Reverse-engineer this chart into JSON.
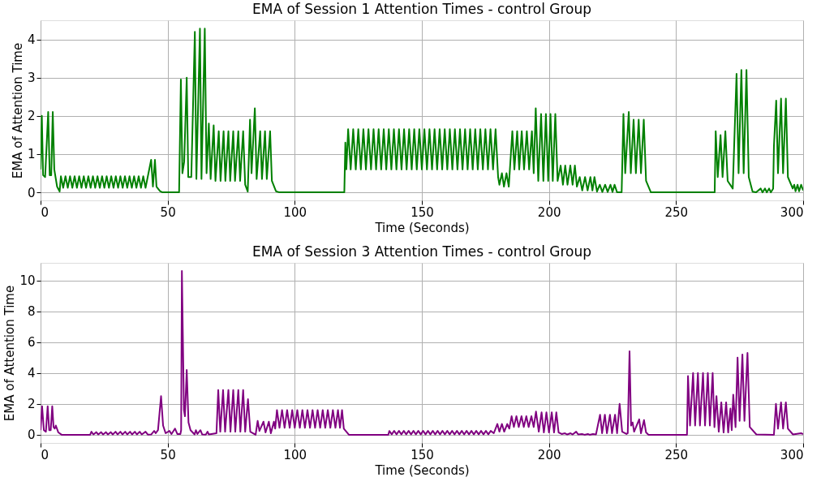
{
  "chart_data": [
    {
      "type": "line",
      "title": "EMA of Session 1 Attention Times - control Group",
      "xlabel": "Time (Seconds)",
      "ylabel": "EMA of Attention Time",
      "xlim": [
        0,
        300
      ],
      "xticks": [
        0,
        50,
        100,
        150,
        200,
        250,
        300
      ],
      "ylim": [
        -0.21,
        4.5
      ],
      "yticks": [
        0,
        1,
        2,
        3,
        4
      ],
      "grid": true,
      "legend": false,
      "marker": "none",
      "line_style": "solid",
      "series": [
        {
          "color": "#008000",
          "x": [
            0,
            0.5,
            1.0,
            1.8,
            3.0,
            3.6,
            4.2,
            4.8,
            5.4,
            6.5,
            7.5,
            8.0,
            8.9,
            9.8,
            10.7,
            11.6,
            12.5,
            13.4,
            14.3,
            15.2,
            16.1,
            17.0,
            17.9,
            18.8,
            19.7,
            20.6,
            21.5,
            22.4,
            23.3,
            24.2,
            25.1,
            26.0,
            26.9,
            27.8,
            28.7,
            29.6,
            30.5,
            31.4,
            32.3,
            33.2,
            34.1,
            35.0,
            35.9,
            36.8,
            37.7,
            38.6,
            39.5,
            40.4,
            41.3,
            43.5,
            44.2,
            45.0,
            45.6,
            47,
            48,
            54.5,
            55.2,
            55.8,
            56.5,
            57.5,
            58.1,
            59.3,
            60.7,
            61.3,
            62.7,
            63.3,
            64.6,
            65.3,
            66.2,
            66.9,
            68.1,
            68.8,
            70.1,
            70.8,
            72.0,
            72.7,
            73.9,
            74.6,
            75.8,
            76.5,
            77.8,
            78.5,
            79.7,
            80.5,
            81.5,
            82.4,
            83.0,
            84.3,
            85.0,
            86.4,
            87.1,
            88.3,
            89.0,
            90.3,
            91.0,
            92.6,
            94,
            119.5,
            119.9,
            120.3,
            121,
            122,
            123,
            124,
            125,
            126,
            127,
            128,
            129,
            130,
            131,
            132,
            133,
            134,
            135,
            136,
            137,
            138,
            139,
            140,
            141,
            142,
            143,
            144,
            145,
            146,
            147,
            148,
            149,
            150,
            151,
            152,
            153,
            154,
            155,
            156,
            157,
            158,
            159,
            160,
            161,
            162,
            163,
            164,
            165,
            166,
            167,
            168,
            169,
            170,
            171,
            172,
            173,
            174,
            175,
            176,
            177,
            178,
            179,
            180,
            180.5,
            181.5,
            182.3,
            183.3,
            184.2,
            185.6,
            186.4,
            187.5,
            188.3,
            189.3,
            190.2,
            191.3,
            192.2,
            193.3,
            194.0,
            194.8,
            195.8,
            196.9,
            197.8,
            198.8,
            199.7,
            200.6,
            201.5,
            202.5,
            203.4,
            204.6,
            205.5,
            206.4,
            207.3,
            208.4,
            209.3,
            210.2,
            211.0,
            212.1,
            213.1,
            214.2,
            215.2,
            216.3,
            217.1,
            217.9,
            218.9,
            220,
            221,
            222.1,
            223.1,
            224.2,
            225,
            225.8,
            226.8,
            228.6,
            229.3,
            230.0,
            231.4,
            232.2,
            233.3,
            234.2,
            235.3,
            236.2,
            237.3,
            238.2,
            240.1,
            265.2,
            265.6,
            266.4,
            267.5,
            268.3,
            269.4,
            270.3,
            272.3,
            273.8,
            274.6,
            275.7,
            276.6,
            277.7,
            278.6,
            280.1,
            281.5,
            283.3,
            284,
            285,
            285.7,
            286.6,
            287.3,
            288.2,
            288.5,
            289.4,
            290.1,
            291.3,
            292.1,
            293.2,
            294,
            295.9,
            296.5,
            297,
            297.8,
            298.4,
            299.2,
            300
          ],
          "values": [
            0.6,
            2.0,
            0.45,
            0.4,
            2.1,
            0.45,
            0.45,
            2.1,
            0.6,
            0.15,
            0.02,
            0.42,
            0.12,
            0.42,
            0.12,
            0.42,
            0.12,
            0.42,
            0.12,
            0.42,
            0.12,
            0.42,
            0.12,
            0.42,
            0.12,
            0.42,
            0.12,
            0.42,
            0.12,
            0.42,
            0.12,
            0.42,
            0.12,
            0.42,
            0.12,
            0.42,
            0.12,
            0.42,
            0.12,
            0.42,
            0.12,
            0.42,
            0.12,
            0.42,
            0.12,
            0.42,
            0.12,
            0.42,
            0.12,
            0.85,
            0.15,
            0.85,
            0.15,
            0.03,
            0,
            0,
            2.95,
            0.5,
            0.8,
            3.0,
            0.4,
            0.4,
            4.2,
            0.35,
            4.28,
            0.35,
            4.28,
            0.5,
            1.8,
            0.35,
            1.75,
            0.3,
            1.6,
            0.3,
            1.6,
            0.3,
            1.6,
            0.3,
            1.6,
            0.3,
            1.6,
            0.3,
            1.6,
            0.2,
            0.02,
            1.9,
            0.5,
            2.2,
            0.35,
            1.6,
            0.35,
            1.6,
            0.35,
            1.6,
            0.3,
            0.03,
            0,
            0,
            1.3,
            0.6,
            1.65,
            0.6,
            1.65,
            0.6,
            1.65,
            0.6,
            1.65,
            0.6,
            1.65,
            0.6,
            1.65,
            0.6,
            1.65,
            0.6,
            1.65,
            0.6,
            1.65,
            0.6,
            1.65,
            0.6,
            1.65,
            0.6,
            1.65,
            0.6,
            1.65,
            0.6,
            1.65,
            0.6,
            1.65,
            0.6,
            1.65,
            0.6,
            1.65,
            0.6,
            1.65,
            0.6,
            1.65,
            0.6,
            1.65,
            0.6,
            1.65,
            0.6,
            1.65,
            0.6,
            1.65,
            0.6,
            1.65,
            0.6,
            1.65,
            0.6,
            1.65,
            0.6,
            1.65,
            0.6,
            1.65,
            0.6,
            1.65,
            0.6,
            1.65,
            0.4,
            0.2,
            0.5,
            0.15,
            0.5,
            0.15,
            1.6,
            0.6,
            1.6,
            0.6,
            1.6,
            0.6,
            1.6,
            0.6,
            1.6,
            0.5,
            2.2,
            0.3,
            2.05,
            0.3,
            2.05,
            0.3,
            2.05,
            0.3,
            2.05,
            0.3,
            0.7,
            0.2,
            0.7,
            0.2,
            0.7,
            0.2,
            0.7,
            0.15,
            0.4,
            0.05,
            0.4,
            0.05,
            0.4,
            0.05,
            0.4,
            0.02,
            0.2,
            0.01,
            0.2,
            0.01,
            0.2,
            0.01,
            0.2,
            0,
            0,
            2.05,
            0.5,
            2.1,
            0.5,
            1.9,
            0.5,
            1.9,
            0.5,
            1.9,
            0.3,
            0,
            0,
            1.6,
            0.4,
            1.5,
            0.4,
            1.6,
            0.3,
            0.1,
            3.1,
            0.5,
            3.2,
            0.5,
            3.2,
            0.4,
            0.02,
            0,
            0.1,
            0,
            0.1,
            0,
            0.1,
            0,
            0.1,
            1.2,
            2.4,
            0.5,
            2.45,
            0.5,
            2.45,
            0.4,
            0.1,
            0.2,
            0.03,
            0.2,
            0.03,
            0.2,
            0.05
          ]
        }
      ]
    },
    {
      "type": "line",
      "title": "EMA of Session 3 Attention Times - control Group",
      "xlabel": "Time (Seconds)",
      "ylabel": "EMA of Attention Time",
      "xlim": [
        0,
        300
      ],
      "xticks": [
        0,
        50,
        100,
        150,
        200,
        250,
        300
      ],
      "ylim": [
        -0.53,
        11.13
      ],
      "yticks": [
        0,
        2,
        4,
        6,
        8,
        10
      ],
      "grid": true,
      "legend": false,
      "marker": "none",
      "line_style": "solid",
      "series": [
        {
          "color": "#800080",
          "x": [
            0,
            0.6,
            1.3,
            2.1,
            2.8,
            3.4,
            4.0,
            4.6,
            5.1,
            5.6,
            6.0,
            7.0,
            8.3,
            19.5,
            20.0,
            20.8,
            21.9,
            22.7,
            23.8,
            24.6,
            25.7,
            26.5,
            27.6,
            28.4,
            29.5,
            30.3,
            31.4,
            32.2,
            33.3,
            34.1,
            35.2,
            36.0,
            37.1,
            37.9,
            39.0,
            39.8,
            41.3,
            42.2,
            43.5,
            44.7,
            45.3,
            46.2,
            47.4,
            48.2,
            49.2,
            50.7,
            51.5,
            52.9,
            53.8,
            55.0,
            55.3,
            55.6,
            56.4,
            56.8,
            57.5,
            58.2,
            59.0,
            60.6,
            61.1,
            61.7,
            62.9,
            63.6,
            65.0,
            65.7,
            66.2,
            69.2,
            69.9,
            70.7,
            71.8,
            72.6,
            73.9,
            74.7,
            75.8,
            76.6,
            77.8,
            78.6,
            79.7,
            80.5,
            81.6,
            82.5,
            84.6,
            85.4,
            86.1,
            87.7,
            88.5,
            89.8,
            90.6,
            91.8,
            92.3,
            93.0,
            94.0,
            95.0,
            96.0,
            97.0,
            98.0,
            99.0,
            100.0,
            101.0,
            102.0,
            103.0,
            104.0,
            105.0,
            106.0,
            107.0,
            108.0,
            109.0,
            110.0,
            111.0,
            112.0,
            113.0,
            114.0,
            115.0,
            116.0,
            117.0,
            117.8,
            118.6,
            119.3,
            121.3,
            136.8,
            137.2,
            138.15,
            139.1,
            140.05,
            141.0,
            141.95,
            142.9,
            143.85,
            144.8,
            145.75,
            146.7,
            147.65,
            148.6,
            149.55,
            150.5,
            151.45,
            152.4,
            153.35,
            154.3,
            155.25,
            156.2,
            157.15,
            158.1,
            159.05,
            160.0,
            160.95,
            161.9,
            162.85,
            163.8,
            164.75,
            165.7,
            166.65,
            167.6,
            168.55,
            169.5,
            170.45,
            171.4,
            172.35,
            173.3,
            174.25,
            175.2,
            176.15,
            177.1,
            178.3,
            179.7,
            180.5,
            181.5,
            182.4,
            183.6,
            184.4,
            185.3,
            186.2,
            187.2,
            188.1,
            189.2,
            190.1,
            191.1,
            192.0,
            193.1,
            194.0,
            194.9,
            196.0,
            197.1,
            198.0,
            199.0,
            200.0,
            201.1,
            202.0,
            202.9,
            203.8,
            205.0,
            206.3,
            207.2,
            208.5,
            209.3,
            210.7,
            211.5,
            213,
            214,
            215.3,
            216,
            217.3,
            218.5,
            220.1,
            220.9,
            222.0,
            222.8,
            224.0,
            224.8,
            226.0,
            226.8,
            227.8,
            228.8,
            230.5,
            231.0,
            231.7,
            232.3,
            232.9,
            233.5,
            235.5,
            236.2,
            237.4,
            238.2,
            239.2,
            254.3,
            254.7,
            255.5,
            256.7,
            257.5,
            258.6,
            259.4,
            260.6,
            261.4,
            262.5,
            263.3,
            264.4,
            265.1,
            265.9,
            266.8,
            267.8,
            268.7,
            269.7,
            270.5,
            271.4,
            271.9,
            272.5,
            273.4,
            274.2,
            275.0,
            276.1,
            276.9,
            278.1,
            279.0,
            281.6,
            288.5,
            289.3,
            290.1,
            291.3,
            292.1,
            293.2,
            294.0,
            296.0,
            299.2,
            300
          ],
          "values": [
            0.3,
            1.85,
            0.3,
            0.2,
            1.85,
            0.3,
            0.3,
            1.85,
            0.5,
            0.4,
            0.6,
            0.15,
            0,
            0,
            0.2,
            0.02,
            0.17,
            0.02,
            0.17,
            0.02,
            0.17,
            0.02,
            0.17,
            0.02,
            0.2,
            0.02,
            0.2,
            0.02,
            0.2,
            0.02,
            0.2,
            0.02,
            0.2,
            0.02,
            0.2,
            0.02,
            0.2,
            0.01,
            0.02,
            0.25,
            0.1,
            0.3,
            2.5,
            0.6,
            0.1,
            0.25,
            0.05,
            0.4,
            0.05,
            0.05,
            0.3,
            10.6,
            1.6,
            1.2,
            4.2,
            0.8,
            0.3,
            0.02,
            0.3,
            0.05,
            0.3,
            0.02,
            0.01,
            0.2,
            0.02,
            0.1,
            2.9,
            0.2,
            2.9,
            0.2,
            2.9,
            0.2,
            2.9,
            0.2,
            2.9,
            0.2,
            2.9,
            0.2,
            2.3,
            0.2,
            0,
            0.9,
            0.25,
            0.85,
            0.15,
            0.85,
            0.1,
            0.85,
            0.4,
            1.6,
            0.45,
            1.6,
            0.45,
            1.6,
            0.45,
            1.6,
            0.45,
            1.6,
            0.45,
            1.6,
            0.45,
            1.6,
            0.45,
            1.6,
            0.45,
            1.6,
            0.45,
            1.6,
            0.45,
            1.6,
            0.45,
            1.6,
            0.45,
            1.6,
            0.45,
            1.6,
            0.4,
            0,
            0,
            0.25,
            0.03,
            0.25,
            0.03,
            0.25,
            0.03,
            0.25,
            0.03,
            0.25,
            0.03,
            0.25,
            0.03,
            0.25,
            0.03,
            0.25,
            0.03,
            0.25,
            0.03,
            0.25,
            0.03,
            0.25,
            0.03,
            0.25,
            0.03,
            0.25,
            0.03,
            0.25,
            0.03,
            0.25,
            0.03,
            0.25,
            0.03,
            0.25,
            0.03,
            0.25,
            0.03,
            0.25,
            0.03,
            0.25,
            0.03,
            0.25,
            0.03,
            0.25,
            0.1,
            0.7,
            0.2,
            0.7,
            0.2,
            0.7,
            0.4,
            1.2,
            0.5,
            1.2,
            0.5,
            1.2,
            0.5,
            1.2,
            0.5,
            1.2,
            0.5,
            1.5,
            0.2,
            1.45,
            0.15,
            1.45,
            0.15,
            1.45,
            0.15,
            1.45,
            0.15,
            0.05,
            0.1,
            0.02,
            0.1,
            0.02,
            0.2,
            0.02,
            0.05,
            0,
            0.05,
            0,
            0.05,
            0.02,
            1.3,
            0.1,
            1.3,
            0.1,
            1.3,
            0.1,
            1.3,
            0.1,
            2.0,
            0.2,
            0.05,
            0.1,
            5.4,
            0.6,
            0.8,
            0.2,
            1.0,
            0.1,
            0.95,
            0.15,
            0,
            0,
            3.8,
            0.6,
            4.0,
            0.6,
            4.0,
            0.6,
            4.0,
            0.6,
            4.0,
            0.6,
            4.0,
            0.5,
            2.5,
            0.2,
            2.1,
            0.15,
            2.1,
            0.15,
            1.7,
            0.3,
            2.6,
            0.5,
            5.0,
            0.9,
            5.2,
            0.9,
            5.3,
            0.5,
            0.02,
            0,
            2.0,
            0.4,
            2.1,
            0.4,
            2.1,
            0.4,
            0.02,
            0.1,
            0.05
          ]
        }
      ]
    }
  ]
}
